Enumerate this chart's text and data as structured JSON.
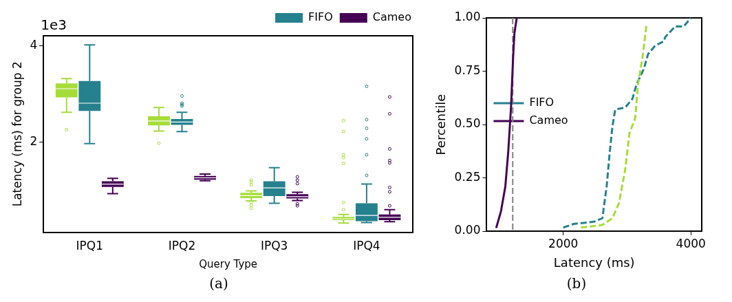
{
  "chart_data": [
    {
      "type": "box",
      "categories": [
        "IPQ1",
        "IPQ2",
        "IPQ3",
        "IPQ4"
      ],
      "xlabel": "Query Type",
      "ylabel": "Latency (ms) for group 2",
      "ylim": [
        0.13,
        4.21
      ],
      "yticks": [
        2,
        4
      ],
      "legend": "top",
      "annotations": [
        "1e3",
        "(a)"
      ],
      "series": [
        {
          "color": "#a6dc3a",
          "boxes": [
            {
              "low": 2.62,
              "q1": 2.93,
              "median": 3.11,
              "q3": 3.22,
              "high": 3.32,
              "outliers": [
                2.26
              ]
            },
            {
              "low": 2.23,
              "q1": 2.35,
              "median": 2.44,
              "q3": 2.54,
              "high": 2.72,
              "outliers": [
                1.98
              ]
            },
            {
              "low": 0.78,
              "q1": 0.84,
              "median": 0.89,
              "q3": 0.95,
              "high": 0.99,
              "outliers": [
                1.21,
                1.17,
                1.11,
                0.75,
                0.69,
                0.63
              ]
            },
            {
              "low": 0.32,
              "q1": 0.38,
              "median": 0.41,
              "q3": 0.45,
              "high": 0.5,
              "outliers": [
                2.45,
                2.22,
                1.74,
                1.68,
                1.56,
                0.75,
                0.6
              ]
            }
          ]
        },
        {
          "name": "FIFO",
          "color": "#26818e",
          "boxes": [
            {
              "low": 1.97,
              "q1": 2.65,
              "median": 2.81,
              "q3": 3.27,
              "high": 4.02
            },
            {
              "low": 2.22,
              "q1": 2.36,
              "median": 2.42,
              "q3": 2.48,
              "high": 2.62,
              "outliers": [
                2.96,
                2.81,
                2.78,
                2.75
              ]
            },
            {
              "low": 0.73,
              "q1": 0.88,
              "median": 1.05,
              "q3": 1.19,
              "high": 1.47
            },
            {
              "low": 0.33,
              "q1": 0.36,
              "median": 0.48,
              "q3": 0.73,
              "high": 1.13,
              "outliers": [
                3.16,
                2.47,
                2.29,
                2.07,
                1.74,
                1.31
              ]
            }
          ]
        },
        {
          "name": "Cameo",
          "color": "#440154",
          "boxes": [
            {
              "low": 0.93,
              "q1": 1.07,
              "median": 1.13,
              "q3": 1.19,
              "high": 1.25
            },
            {
              "low": 1.2,
              "q1": 1.22,
              "median": 1.26,
              "q3": 1.3,
              "high": 1.34
            },
            {
              "low": 0.79,
              "q1": 0.83,
              "median": 0.87,
              "q3": 0.92,
              "high": 0.96,
              "outliers": [
                1.28,
                1.21,
                1.14,
                0.72,
                0.68
              ]
            },
            {
              "low": 0.35,
              "q1": 0.38,
              "median": 0.44,
              "q3": 0.5,
              "high": 0.6,
              "outliers": [
                2.94,
                2.59,
                1.86,
                1.62,
                1.57,
                1.06,
                0.97,
                0.68
              ]
            }
          ]
        }
      ]
    },
    {
      "type": "line",
      "xlabel": "Latency (ms)",
      "ylabel": "Percentile",
      "xlim": [
        800,
        4170
      ],
      "xticks": [
        2000,
        4000
      ],
      "ylim": [
        0,
        1
      ],
      "yticks": [
        {
          "value": 0,
          "label": "0.00"
        },
        {
          "value": 0.25,
          "label": "0.25"
        },
        {
          "value": 0.5,
          "label": "0.50"
        },
        {
          "value": 0.75,
          "label": "0.75"
        },
        {
          "value": 1,
          "label": "1.00"
        }
      ],
      "legend": "top",
      "marker": "none",
      "annotations": [
        "(b)"
      ],
      "ref_lines": [
        {
          "axis": "x",
          "value": 1208,
          "color": "#808080",
          "line_style": "dashed"
        }
      ],
      "series": [
        {
          "color": "#a6dc3a",
          "line_style": "dashed",
          "x": [
            2277,
            2613,
            2770,
            2872,
            2971,
            3038,
            3127,
            3172,
            3239,
            3306
          ],
          "values": [
            0.017,
            0.029,
            0.061,
            0.13,
            0.29,
            0.46,
            0.53,
            0.69,
            0.81,
            0.97
          ]
        },
        {
          "name": "FIFO",
          "color": "#26818e",
          "line_style": "dashed",
          "x": [
            2000,
            2166,
            2479,
            2613,
            2680,
            2725,
            2770,
            2814,
            2971,
            3083,
            3150,
            3262,
            3329,
            3441,
            3575,
            3598,
            3754,
            3888,
            4000
          ],
          "values": [
            0.017,
            0.034,
            0.044,
            0.061,
            0.21,
            0.36,
            0.49,
            0.57,
            0.58,
            0.62,
            0.69,
            0.76,
            0.83,
            0.87,
            0.89,
            0.91,
            0.96,
            0.96,
            1.0
          ]
        },
        {
          "name": "Cameo",
          "color": "#440154",
          "line_style": "solid",
          "x": [
            949,
            1025,
            1092,
            1137,
            1181,
            1213,
            1235,
            1271
          ],
          "values": [
            0.015,
            0.095,
            0.21,
            0.37,
            0.58,
            0.81,
            0.93,
            1.0
          ]
        }
      ]
    }
  ]
}
